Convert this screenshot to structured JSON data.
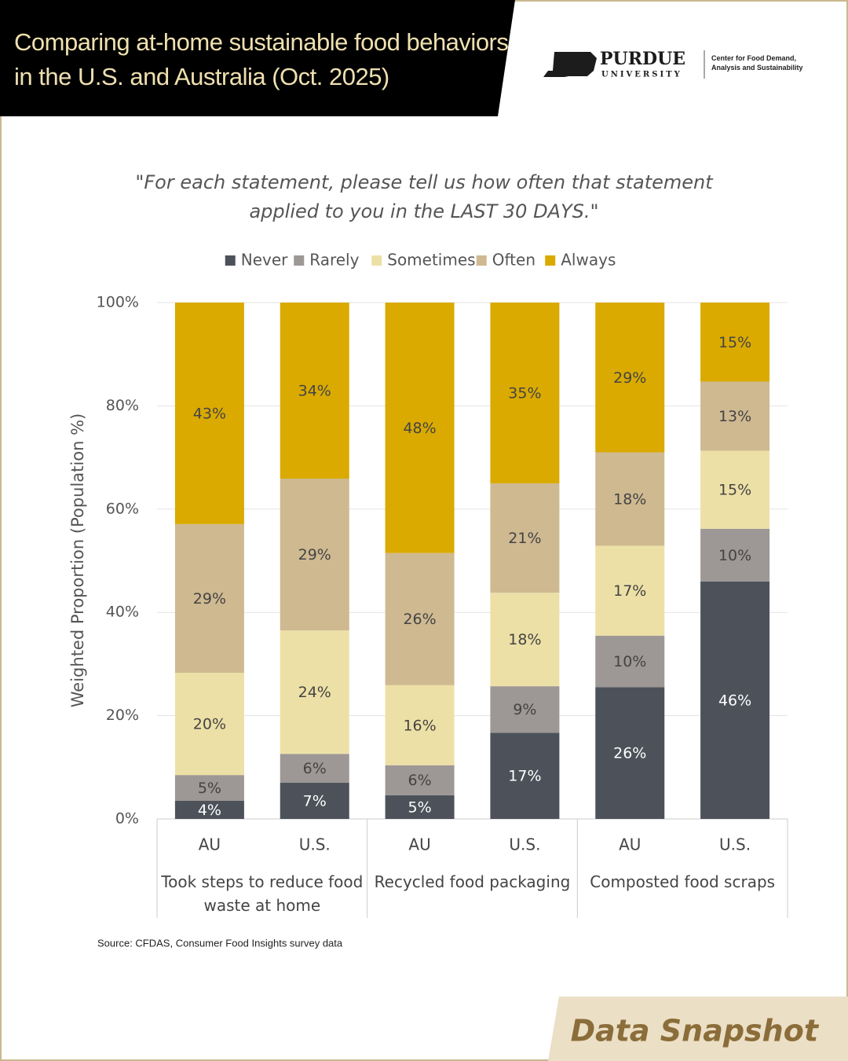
{
  "header": {
    "title": "Comparing at-home sustainable food behaviors in the U.S. and Australia (Oct. 2025)",
    "logo_name": "PURDUE",
    "logo_sub": "UNIVERSITY",
    "center": "Center for Food Demand, Analysis and Sustainability"
  },
  "chart_data": {
    "type": "stacked_bar",
    "subtitle": "\"For each statement, please tell us how often that statement applied to you in the LAST 30 DAYS.\"",
    "y_label": "Weighted Proportion (Population %)",
    "categories": [
      "AU",
      "U.S.",
      "AU",
      "U.S.",
      "AU",
      "U.S."
    ],
    "groups": [
      "Took steps to reduce food waste at home",
      "Recycled food packaging",
      "Composted food scraps"
    ],
    "series": [
      {
        "name": "Never",
        "color": "#4d525a",
        "values": [
          3.5,
          7.0,
          4.6,
          16.7,
          25.5,
          46.0
        ],
        "value_labels": [
          "4%",
          "7%",
          "5%",
          "17%",
          "26%",
          "46%"
        ]
      },
      {
        "name": "Rarely",
        "color": "#9d9795",
        "values": [
          5.0,
          5.6,
          5.8,
          9.0,
          10.0,
          10.2
        ],
        "value_labels": [
          "5%",
          "6%",
          "6%",
          "9%",
          "10%",
          "10%"
        ]
      },
      {
        "name": "Sometimes",
        "color": "#ede0a6",
        "values": [
          19.8,
          23.9,
          15.5,
          18.1,
          17.4,
          15.1
        ],
        "value_labels": [
          "20%",
          "24%",
          "16%",
          "18%",
          "17%",
          "15%"
        ]
      },
      {
        "name": "Often",
        "color": "#cfb991",
        "values": [
          28.8,
          29.4,
          25.6,
          21.2,
          18.1,
          13.4
        ],
        "value_labels": [
          "29%",
          "29%",
          "26%",
          "21%",
          "18%",
          "13%"
        ]
      },
      {
        "name": "Always",
        "color": "#daaa00",
        "values": [
          42.9,
          34.1,
          48.5,
          35.0,
          29.0,
          15.3
        ],
        "value_labels": [
          "43%",
          "34%",
          "48%",
          "35%",
          "29%",
          "15%"
        ]
      }
    ],
    "ylim": [
      0,
      100
    ],
    "yticks": [
      {
        "value": 0,
        "label": "0%"
      },
      {
        "value": 20,
        "label": "20%"
      },
      {
        "value": 40,
        "label": "40%"
      },
      {
        "value": 60,
        "label": "60%"
      },
      {
        "value": 80,
        "label": "80%"
      },
      {
        "value": 100,
        "label": "100%"
      }
    ],
    "grid": true,
    "source": "Source: CFDAS, Consumer Food Insights survey data"
  },
  "footer": {
    "badge": "Data Snapshot"
  }
}
